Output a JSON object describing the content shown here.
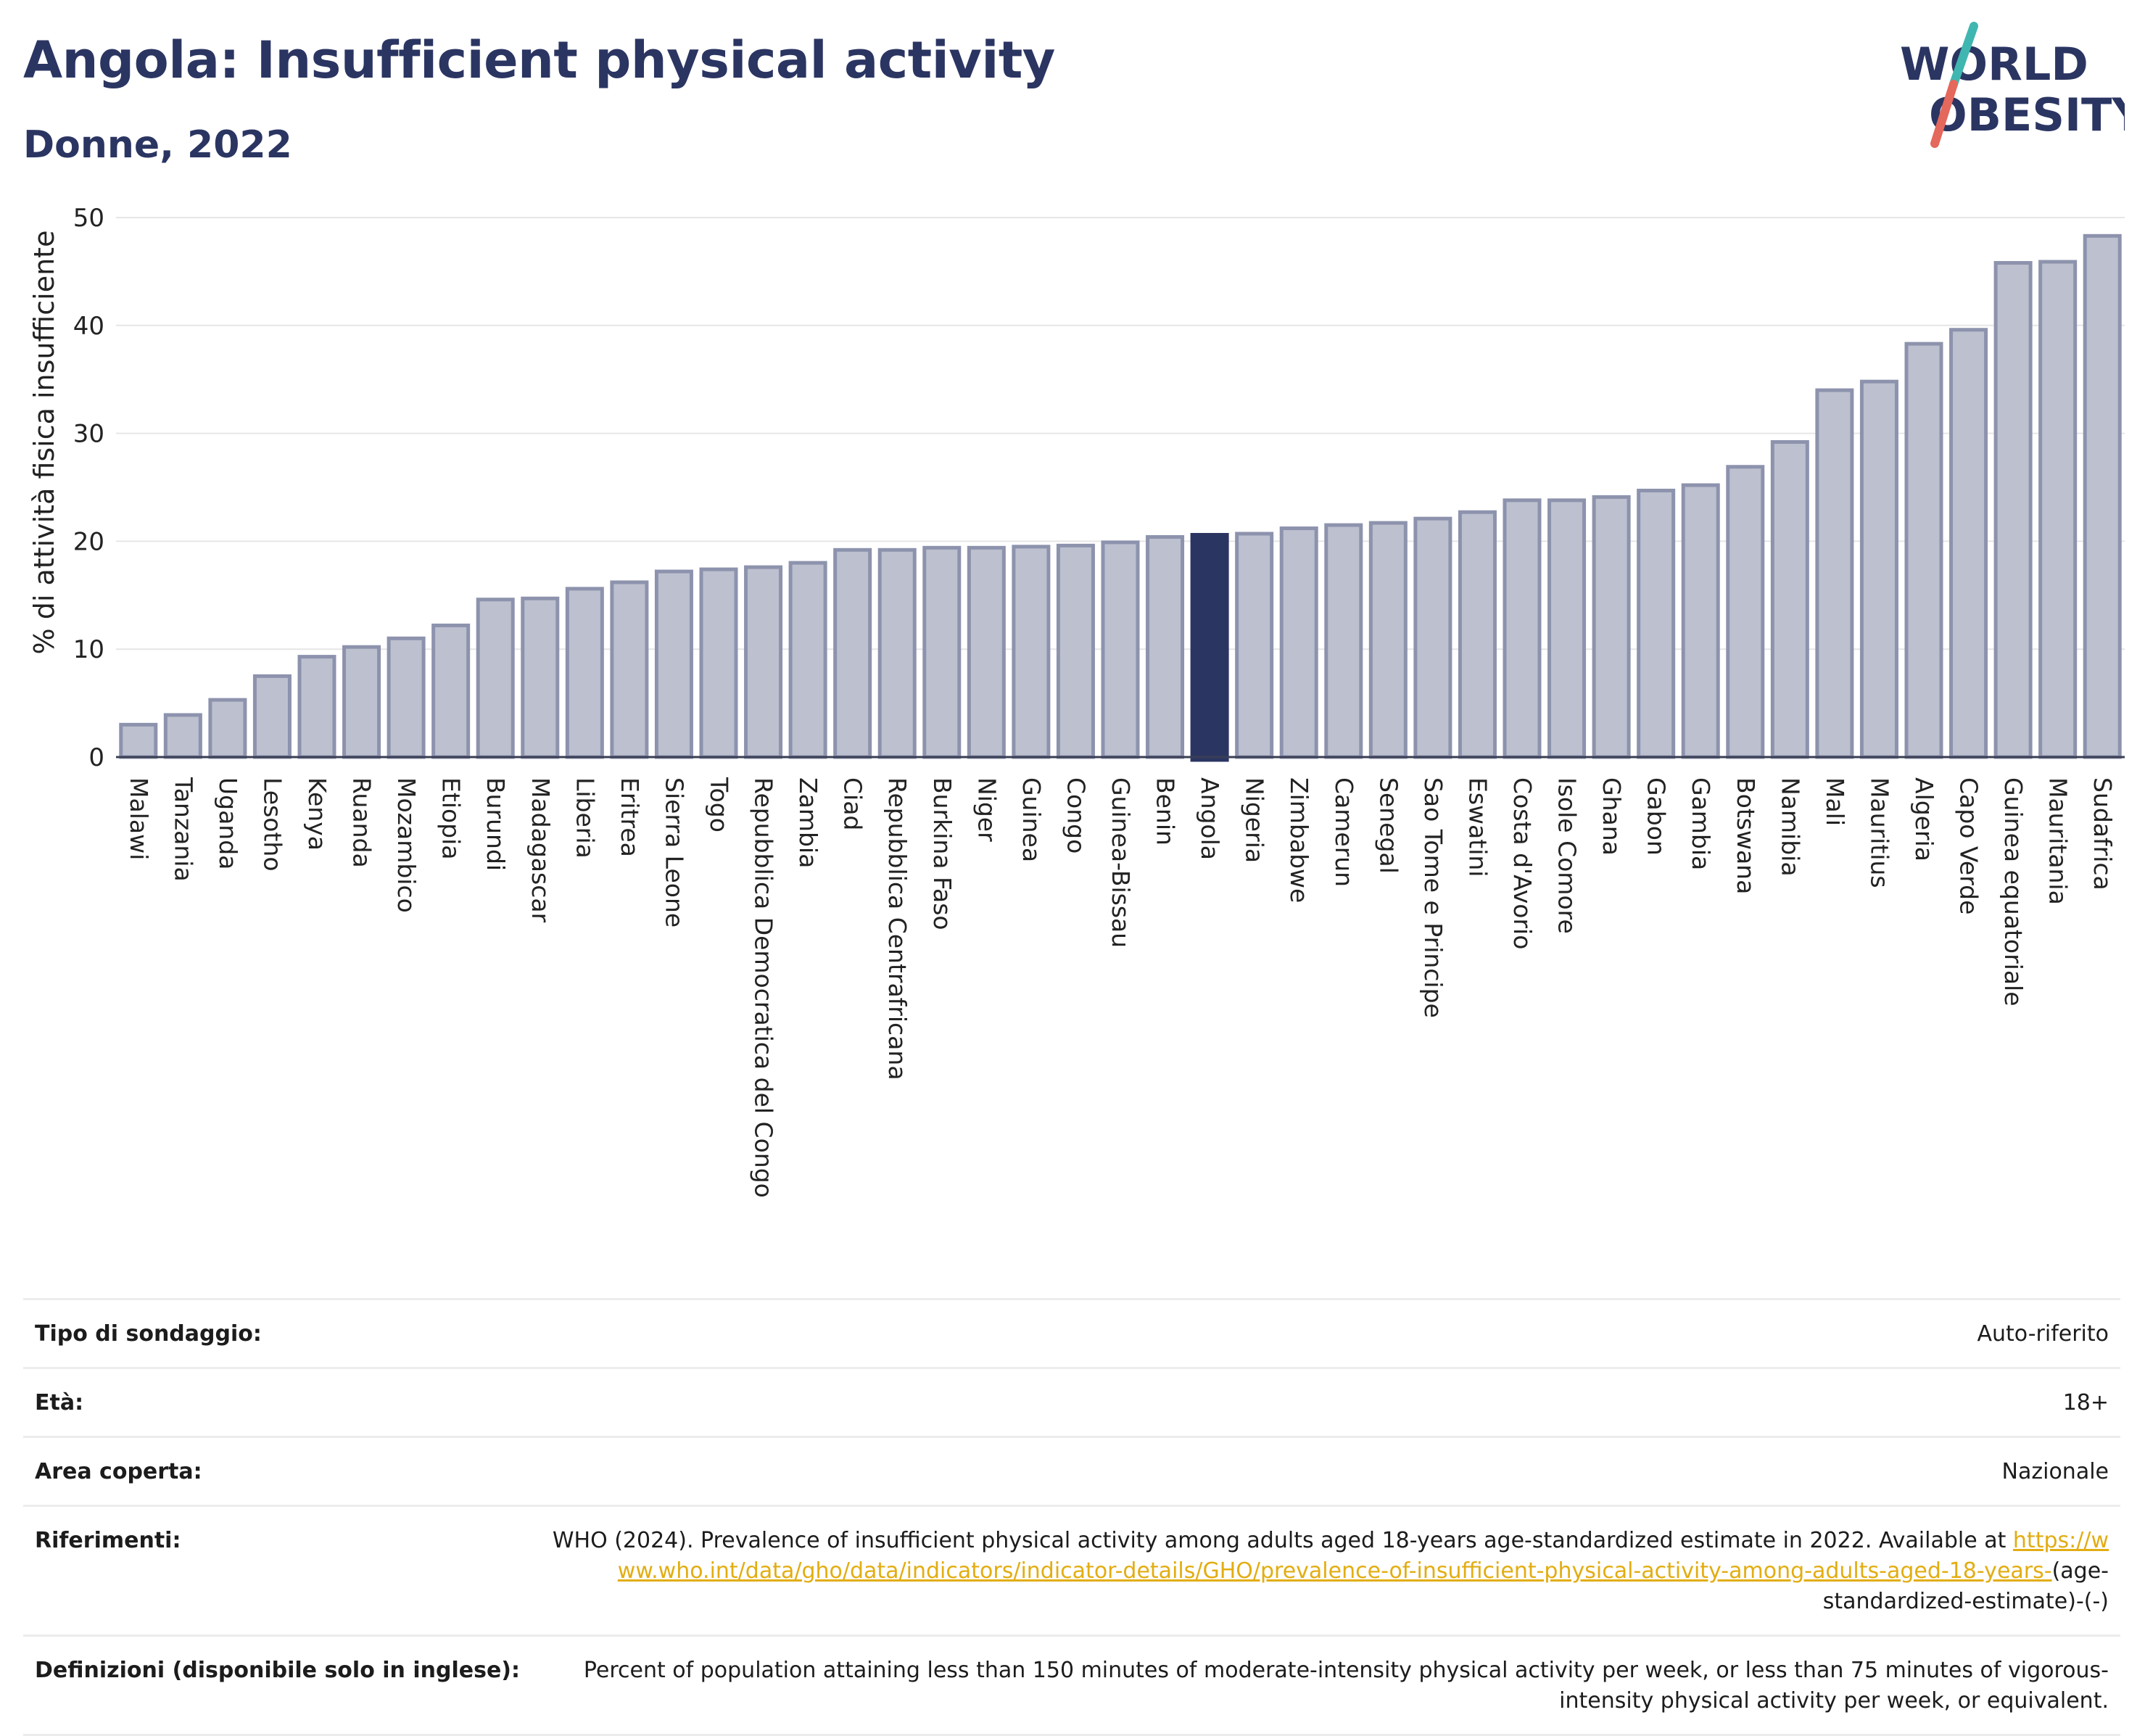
{
  "header": {
    "title": "Angola: Insufficient physical activity",
    "subtitle": "Donne, 2022",
    "logo_line1": "WORLD",
    "logo_line2": "OBESITY"
  },
  "colors": {
    "bar": "#bcc0cf",
    "bar_stroke": "#8d93ad",
    "highlight": "#2b3562",
    "title": "#2b3562",
    "link": "#e2ad12",
    "logo_slash_teal": "#3fb6b0",
    "logo_slash_red": "#e4685b"
  },
  "chart_data": {
    "type": "bar",
    "title": "",
    "xlabel": "",
    "ylabel": "% di attività fisica insufficiente",
    "ylim": [
      0,
      50
    ],
    "yticks": [
      0,
      10,
      20,
      30,
      40,
      50
    ],
    "grid": true,
    "highlight": "Angola",
    "categories": [
      "Malawi",
      "Tanzania",
      "Uganda",
      "Lesotho",
      "Kenya",
      "Ruanda",
      "Mozambico",
      "Etiopia",
      "Burundi",
      "Madagascar",
      "Liberia",
      "Eritrea",
      "Sierra Leone",
      "Togo",
      "Repubblica Democratica del Congo",
      "Zambia",
      "Ciad",
      "Repubblica Centrafricana",
      "Burkina Faso",
      "Niger",
      "Guinea",
      "Congo",
      "Guinea-Bissau",
      "Benin",
      "Angola",
      "Nigeria",
      "Zimbabwe",
      "Camerun",
      "Senegal",
      "Sao Tome e Principe",
      "Eswatini",
      "Costa d'Avorio",
      "Isole Comore",
      "Ghana",
      "Gabon",
      "Gambia",
      "Botswana",
      "Namibia",
      "Mali",
      "Mauritius",
      "Algeria",
      "Capo Verde",
      "Guinea equatoriale",
      "Mauritania",
      "Sudafrica"
    ],
    "values": [
      3.0,
      3.9,
      5.3,
      7.5,
      9.3,
      10.2,
      11.0,
      12.2,
      14.6,
      14.7,
      15.6,
      16.2,
      17.2,
      17.4,
      17.6,
      18.0,
      19.2,
      19.2,
      19.4,
      19.4,
      19.5,
      19.6,
      19.9,
      20.4,
      20.6,
      20.7,
      21.2,
      21.5,
      21.7,
      22.1,
      22.7,
      23.8,
      23.8,
      24.1,
      24.7,
      25.2,
      26.9,
      29.2,
      34.0,
      34.8,
      38.3,
      39.6,
      45.8,
      45.9,
      48.3
    ]
  },
  "info": [
    {
      "label": "Tipo di sondaggio:",
      "value": "Auto-riferito"
    },
    {
      "label": "Età:",
      "value": "18+"
    },
    {
      "label": "Area coperta:",
      "value": "Nazionale"
    },
    {
      "label": "Riferimenti:",
      "text_before": "WHO (2024). Prevalence of insufficient physical activity among adults aged 18-years age-standardized estimate in 2022. Available at",
      "link": "https://www.who.int/data/gho/data/indicators/indicator-details/GHO/prevalence-of-insufficient-physical-activity-among-adults-aged-18-years-",
      "text_after": "(age-standardized-estimate)-(-)"
    },
    {
      "label": "Definizioni (disponibile solo in inglese):",
      "value": "Percent of population attaining less than 150 minutes of moderate-intensity physical activity per week, or less than 75 minutes of vigorous-intensity physical activity per week, or equivalent."
    }
  ]
}
